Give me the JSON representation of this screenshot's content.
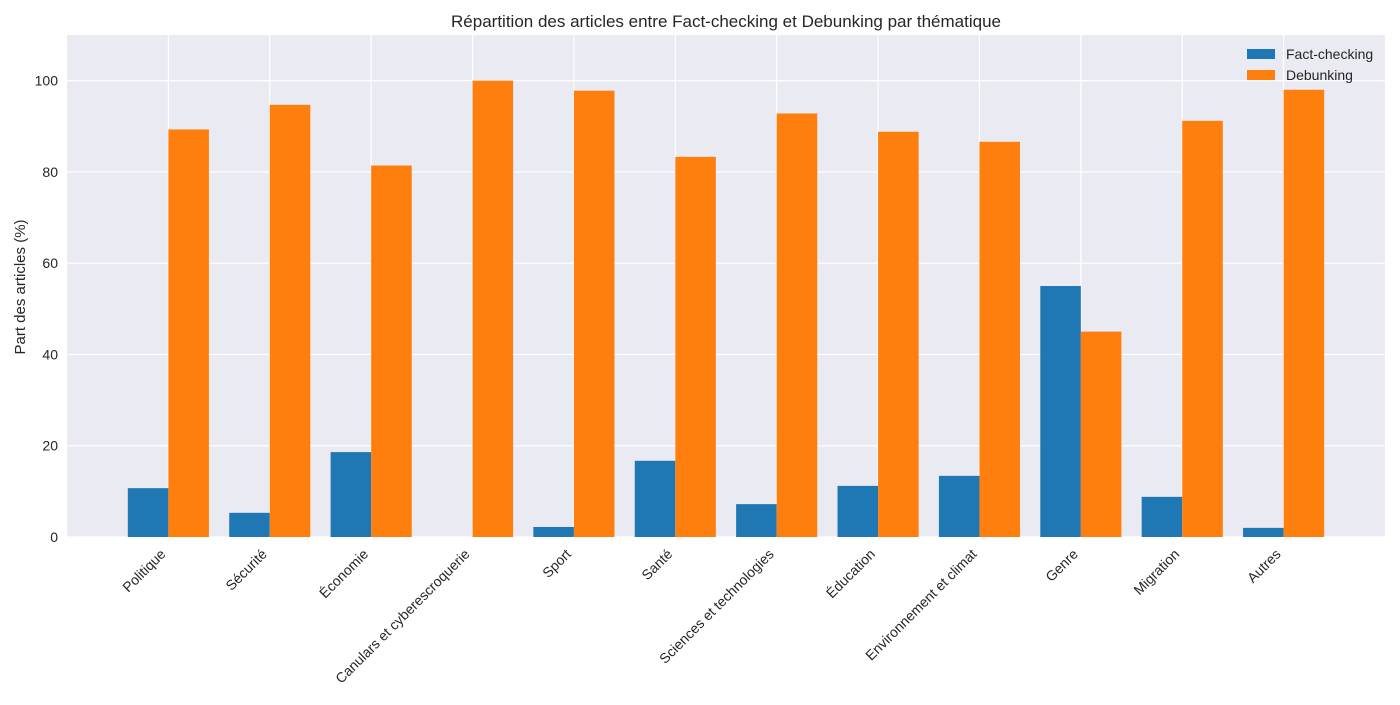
{
  "chart_data": {
    "type": "bar",
    "title": "Répartition des articles entre Fact-checking et Debunking par thématique",
    "xlabel": "",
    "ylabel": "Part des articles (%)",
    "ylim": [
      0,
      110
    ],
    "yticks": [
      0,
      20,
      40,
      60,
      80,
      100
    ],
    "grid": true,
    "legend_position": "top-right",
    "categories": [
      "Politique",
      "Sécurité",
      "Économie",
      "Canulars et cyberescroquerie",
      "Sport",
      "Santé",
      "Sciences et technologies",
      "Éducation",
      "Environnement et climat",
      "Genre",
      "Migration",
      "Autres"
    ],
    "series": [
      {
        "name": "Fact-checking",
        "color": "#1f77b4",
        "values": [
          10.7,
          5.3,
          18.6,
          0,
          2.2,
          16.7,
          7.2,
          11.2,
          13.4,
          55.0,
          8.8,
          2.0
        ]
      },
      {
        "name": "Debunking",
        "color": "#ff7f0e",
        "values": [
          89.3,
          94.7,
          81.4,
          100,
          97.8,
          83.3,
          92.8,
          88.8,
          86.6,
          45.0,
          91.2,
          98.0
        ]
      }
    ],
    "background": "#eaeaf2"
  }
}
